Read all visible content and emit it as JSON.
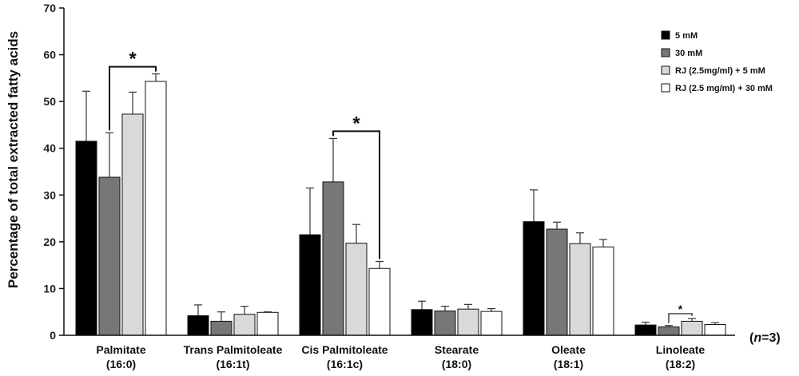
{
  "chart_data": {
    "type": "bar",
    "ylabel": "Percentage of total extracted fatty acids",
    "ylim": [
      0,
      70
    ],
    "yticks": [
      0,
      10,
      20,
      30,
      40,
      50,
      60,
      70
    ],
    "categories": [
      [
        "Palmitate",
        "(16:0)"
      ],
      [
        "Trans Palmitoleate",
        "(16:1t)"
      ],
      [
        "Cis Palmitoleate",
        "(16:1c)"
      ],
      [
        "Stearate",
        "(18:0)"
      ],
      [
        "Oleate",
        "(18:1)"
      ],
      [
        "Linoleate",
        "(18:2)"
      ]
    ],
    "series": [
      {
        "name": "5 mM",
        "color": "#000000",
        "values": [
          41.5,
          4.2,
          21.5,
          5.5,
          24.3,
          2.2
        ],
        "errors": [
          10.7,
          2.3,
          10.0,
          1.8,
          6.8,
          0.6
        ]
      },
      {
        "name": "30 mM",
        "color": "#777777",
        "values": [
          33.8,
          3.0,
          32.8,
          5.2,
          22.7,
          1.8
        ],
        "errors": [
          9.5,
          2.0,
          9.3,
          1.0,
          1.5,
          0.3
        ]
      },
      {
        "name": "RJ (2.5mg/ml) + 5 mM",
        "color": "#d9d9d9",
        "values": [
          47.3,
          4.5,
          19.7,
          5.6,
          19.6,
          3.0
        ],
        "errors": [
          4.7,
          1.7,
          4.0,
          1.0,
          2.3,
          0.6
        ]
      },
      {
        "name": "RJ (2.5 mg/ml) + 30 mM",
        "color": "#ffffff",
        "values": [
          54.3,
          4.9,
          14.3,
          5.1,
          18.9,
          2.3
        ],
        "errors": [
          1.6,
          0.1,
          1.5,
          0.6,
          1.6,
          0.4
        ]
      }
    ],
    "significance": [
      {
        "category": 0,
        "from": 1,
        "to": 3,
        "label": "*"
      },
      {
        "category": 2,
        "from": 1,
        "to": 3,
        "label": "*"
      },
      {
        "category": 5,
        "from": 1,
        "to": 2,
        "label": "*"
      }
    ],
    "note": "(n=3)",
    "legend_position": "top-right",
    "grid": false
  }
}
